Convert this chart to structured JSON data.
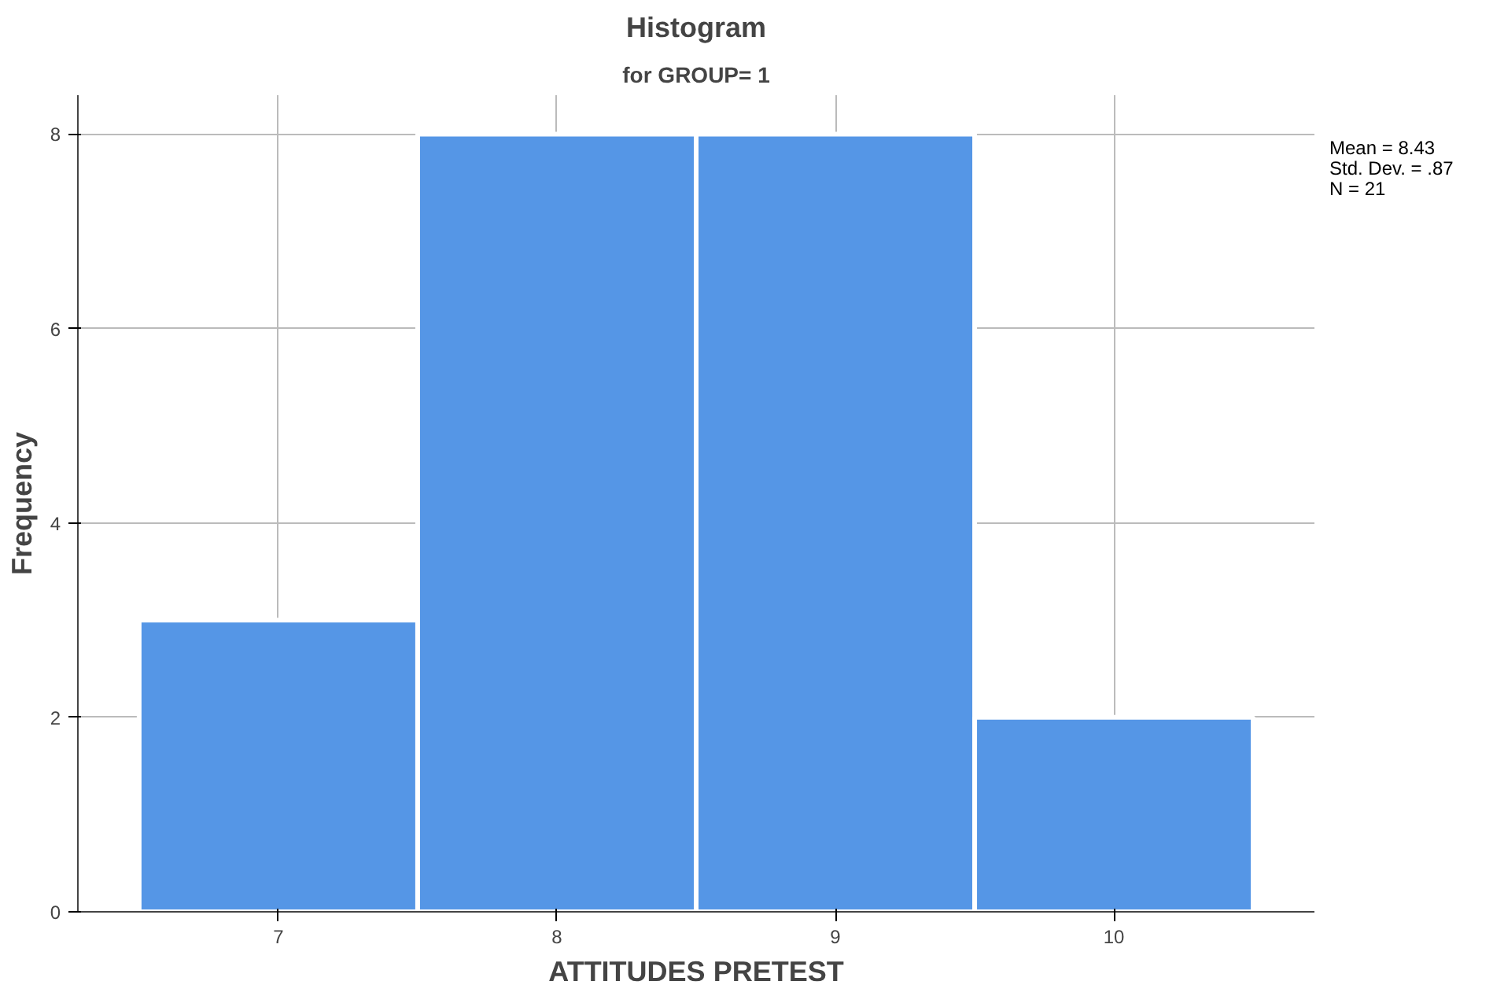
{
  "chart_data": {
    "type": "histogram",
    "title": "Histogram",
    "subtitle": "for GROUP= 1",
    "xlabel": "ATTITUDES PRETEST",
    "ylabel": "Frequency",
    "bins": [
      6.5,
      7.5,
      8.5,
      9.5,
      10.5
    ],
    "values": [
      3,
      8,
      8,
      2
    ],
    "color": "#5596e6",
    "xlim": [
      6.28,
      10.72
    ],
    "xticks": [
      7,
      8,
      9,
      10
    ],
    "ylim": [
      0,
      8.4
    ],
    "yticks": [
      0,
      2,
      4,
      6,
      8
    ],
    "grid": true,
    "annotations": [
      "Mean = 8.43",
      "Std. Dev. = .87",
      "N = 21"
    ]
  }
}
